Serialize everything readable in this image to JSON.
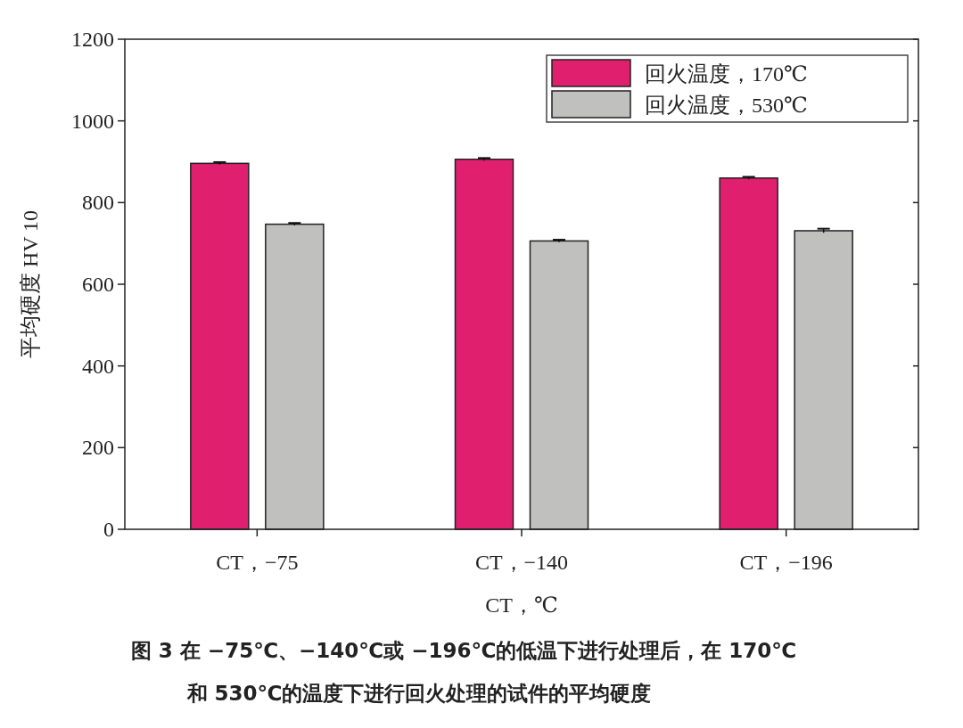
{
  "chart_data": {
    "type": "bar",
    "categories": [
      "CT，−75",
      "CT，−140",
      "CT，−196"
    ],
    "series": [
      {
        "name": "回火温度，170℃",
        "color": "#e0206f",
        "values": [
          896,
          906,
          860
        ],
        "errors": [
          3,
          3,
          3
        ]
      },
      {
        "name": "回火温度，530℃",
        "color": "#c0c0be",
        "values": [
          747,
          706,
          731
        ],
        "errors": [
          3,
          3,
          5
        ]
      }
    ],
    "xlabel": "CT，℃",
    "ylabel": "平均硬度 HV 10",
    "ylim": [
      0,
      1200
    ],
    "yticks": [
      0,
      200,
      400,
      600,
      800,
      1000,
      1200
    ],
    "legend": "top right",
    "grid": false,
    "annotations": [
      "图 3  在 −75℃、−140℃或 −196℃的低温下进行处理后，在 170℃",
      "和 530℃的温度下进行回火处理的试件的平均硬度"
    ]
  }
}
